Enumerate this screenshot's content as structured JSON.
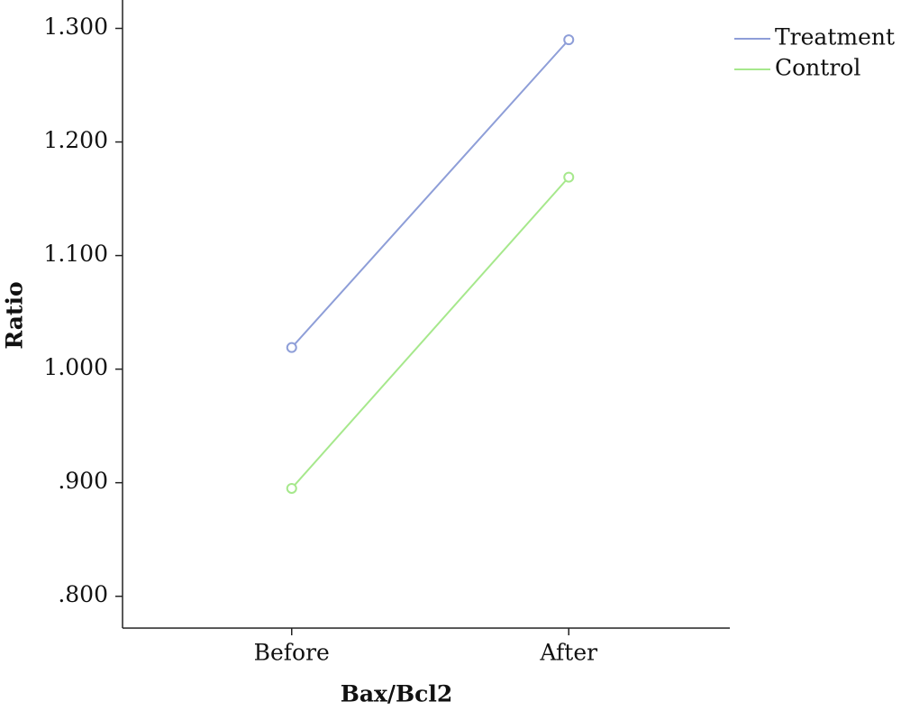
{
  "chart_data": {
    "type": "line",
    "x_label": "Bax/Bcl2",
    "y_label": "Ratio",
    "categories": [
      "Before",
      "After"
    ],
    "series": [
      {
        "name": "Treatment",
        "color": "#8e9ed8",
        "values": [
          1.019,
          1.29
        ]
      },
      {
        "name": "Control",
        "color": "#a6e88c",
        "values": [
          0.895,
          1.169
        ]
      }
    ],
    "ylim": [
      0.772,
      1.325
    ],
    "yticks": [
      {
        "value": 0.8,
        "label": ".800"
      },
      {
        "value": 0.9,
        "label": ".900"
      },
      {
        "value": 1.0,
        "label": "1.000"
      },
      {
        "value": 1.1,
        "label": "1.100"
      },
      {
        "value": 1.2,
        "label": "1.200"
      },
      {
        "value": 1.3,
        "label": "1.300"
      }
    ],
    "legend": "top-right",
    "markers": "circle"
  }
}
